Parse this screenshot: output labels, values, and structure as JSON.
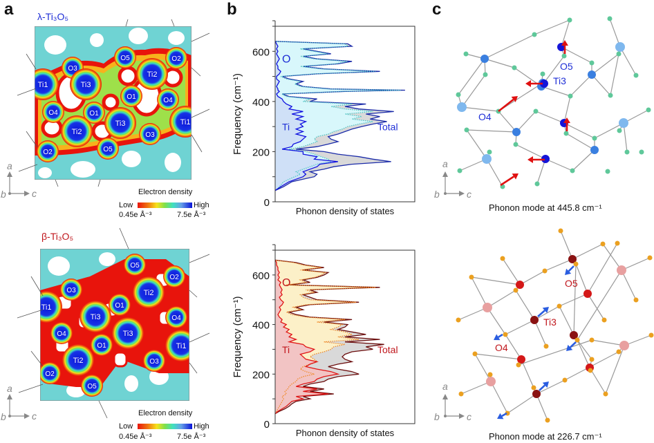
{
  "panels": {
    "a": {
      "letter": "a",
      "top": {
        "title": "λ-Ti₃O₅",
        "title_color": "#1f2fd6",
        "atom_labels": [
          "O3",
          "O5",
          "O2",
          "Ti1",
          "Ti3",
          "Ti2",
          "O1",
          "O4",
          "O4",
          "O1",
          "Ti3",
          "Ti1",
          "Ti2",
          "O3",
          "O2",
          "O5"
        ]
      },
      "bottom": {
        "title": "β-Ti₃O₅",
        "title_color": "#c0161c",
        "atom_labels": [
          "O5",
          "O2",
          "O3",
          "Ti2",
          "Ti1",
          "O1",
          "Ti3",
          "O4",
          "O4",
          "Ti3",
          "O1",
          "Ti1",
          "Ti2",
          "O3",
          "O2",
          "O5"
        ]
      },
      "axes": {
        "a": "a",
        "b": "b",
        "c": "c"
      },
      "colorbar": {
        "title": "Electron density",
        "low": "Low",
        "high": "High",
        "min_label": "0.45e Å⁻³",
        "max_label": "7.5e Å⁻³",
        "colors": [
          "#e8140c",
          "#f07d10",
          "#f7e21c",
          "#7fe04a",
          "#3fe0c0",
          "#66e3e8",
          "#1733e6",
          "#0a14d8"
        ]
      }
    },
    "b": {
      "letter": "b"
    },
    "c": {
      "letter": "c",
      "top": {
        "caption": "Phonon mode at 445.8 cm⁻¹",
        "labels": [
          "O5",
          "Ti3",
          "O4"
        ],
        "label_color": "#1f2fd6",
        "arrow_color": "#e01010"
      },
      "bottom": {
        "caption": "Phonon mode at 226.7 cm⁻¹",
        "labels": [
          "O5",
          "Ti3",
          "O4"
        ],
        "label_color": "#c0161c",
        "arrow_color": "#2a5de0"
      },
      "axes": {
        "a": "a",
        "b": "b",
        "c": "c"
      }
    }
  },
  "chart_data": [
    {
      "type": "area",
      "title": "λ-Ti3O5 phonon DOS",
      "xlabel": "Phonon density of states",
      "ylabel": "Frequency (cm⁻¹)",
      "ylim": [
        0,
        700
      ],
      "yticks": [
        0,
        200,
        400,
        600
      ],
      "ytick_labels": [
        "0",
        "200",
        "400",
        "600"
      ],
      "xlim": [
        0,
        1
      ],
      "orientation": "horizontal",
      "annotations": [
        "O",
        "Ti",
        "Total"
      ],
      "annotation_color": "#1f2fd6",
      "y": [
        45,
        60,
        80,
        90,
        100,
        110,
        120,
        130,
        140,
        150,
        160,
        170,
        180,
        190,
        200,
        210,
        220,
        230,
        240,
        250,
        260,
        270,
        280,
        290,
        300,
        310,
        320,
        330,
        340,
        350,
        360,
        370,
        380,
        390,
        400,
        410,
        420,
        430,
        440,
        445,
        450,
        460,
        470,
        480,
        490,
        500,
        510,
        520,
        530,
        540,
        550,
        560,
        570,
        580,
        590,
        600,
        610,
        620,
        630,
        640
      ],
      "series": [
        {
          "name": "Total",
          "color": "#1a2aa8",
          "fill": "#d9d9d9",
          "values": [
            0.0,
            0.06,
            0.12,
            0.2,
            0.28,
            0.3,
            0.25,
            0.35,
            0.42,
            0.55,
            0.83,
            0.7,
            0.6,
            0.45,
            0.35,
            0.15,
            0.3,
            0.38,
            0.45,
            0.4,
            0.38,
            0.45,
            0.5,
            0.55,
            0.62,
            0.7,
            0.8,
            0.68,
            0.75,
            0.65,
            0.85,
            0.6,
            0.5,
            0.65,
            0.25,
            0.3,
            0.1,
            0.05,
            0.5,
            0.93,
            0.4,
            0.2,
            0.15,
            0.2,
            0.1,
            0.05,
            0.3,
            0.75,
            0.35,
            0.2,
            0.45,
            0.55,
            0.3,
            0.2,
            0.4,
            0.3,
            0.2,
            0.55,
            0.52,
            0.0
          ]
        },
        {
          "name": "O",
          "color": "#4fc7c7",
          "fill": "#d8f7fb",
          "dotted": true,
          "values": [
            0.0,
            0.03,
            0.06,
            0.1,
            0.14,
            0.18,
            0.15,
            0.2,
            0.25,
            0.3,
            0.4,
            0.38,
            0.33,
            0.28,
            0.22,
            0.1,
            0.2,
            0.25,
            0.3,
            0.28,
            0.3,
            0.38,
            0.42,
            0.48,
            0.52,
            0.6,
            0.7,
            0.55,
            0.62,
            0.5,
            0.7,
            0.5,
            0.4,
            0.55,
            0.2,
            0.25,
            0.08,
            0.05,
            0.48,
            0.9,
            0.38,
            0.18,
            0.14,
            0.18,
            0.08,
            0.04,
            0.28,
            0.72,
            0.33,
            0.18,
            0.43,
            0.52,
            0.28,
            0.18,
            0.38,
            0.28,
            0.18,
            0.52,
            0.5,
            0.0
          ]
        },
        {
          "name": "Ti",
          "color": "#1010e0",
          "fill": "#cfe0f7",
          "values": [
            0.0,
            0.04,
            0.1,
            0.15,
            0.2,
            0.22,
            0.2,
            0.25,
            0.3,
            0.32,
            0.45,
            0.28,
            0.3,
            0.2,
            0.2,
            0.05,
            0.12,
            0.13,
            0.18,
            0.2,
            0.22,
            0.15,
            0.2,
            0.15,
            0.2,
            0.18,
            0.22,
            0.15,
            0.2,
            0.12,
            0.2,
            0.1,
            0.12,
            0.08,
            0.06,
            0.05,
            0.02,
            0.01,
            0.03,
            0.02,
            0.02,
            0.01,
            0.02,
            0.03,
            0.01,
            0.01,
            0.03,
            0.04,
            0.02,
            0.02,
            0.01,
            0.02,
            0.03,
            0.02,
            0.01,
            0.02,
            0.01,
            0.02,
            0.01,
            0.0
          ]
        }
      ]
    },
    {
      "type": "area",
      "title": "β-Ti3O5 phonon DOS",
      "xlabel": "Phonon density of states",
      "ylabel": "Frequency (cm⁻¹)",
      "ylim": [
        0,
        700
      ],
      "yticks": [
        0,
        200,
        400,
        600
      ],
      "ytick_labels": [
        "0",
        "200",
        "400",
        "600"
      ],
      "xlim": [
        0,
        1
      ],
      "orientation": "horizontal",
      "annotations": [
        "O",
        "Ti",
        "Total"
      ],
      "annotation_color": "#c0161c",
      "y": [
        40,
        50,
        60,
        70,
        80,
        90,
        100,
        110,
        120,
        130,
        140,
        150,
        160,
        170,
        180,
        190,
        200,
        210,
        220,
        230,
        240,
        250,
        260,
        270,
        280,
        290,
        300,
        310,
        320,
        330,
        340,
        350,
        360,
        370,
        380,
        390,
        400,
        410,
        420,
        430,
        440,
        450,
        460,
        470,
        480,
        490,
        500,
        510,
        520,
        530,
        540,
        550,
        560,
        570,
        580,
        590,
        600,
        610,
        620,
        630,
        640,
        650,
        660
      ],
      "series": [
        {
          "name": "Total",
          "color": "#6b0d0d",
          "fill": "#d9d9d9",
          "values": [
            0.0,
            0.03,
            0.07,
            0.1,
            0.12,
            0.15,
            0.25,
            0.2,
            0.42,
            0.25,
            0.35,
            0.2,
            0.25,
            0.35,
            0.38,
            0.45,
            0.6,
            0.55,
            0.45,
            0.38,
            0.45,
            0.55,
            0.5,
            0.48,
            0.5,
            0.55,
            0.7,
            0.65,
            0.78,
            0.5,
            0.75,
            0.5,
            0.65,
            0.55,
            0.45,
            0.5,
            0.52,
            0.35,
            0.55,
            0.25,
            0.15,
            0.1,
            0.2,
            0.15,
            0.25,
            0.6,
            0.3,
            0.25,
            0.2,
            0.3,
            0.25,
            0.75,
            0.1,
            0.25,
            0.2,
            0.3,
            0.35,
            0.38,
            0.2,
            0.35,
            0.22,
            0.15,
            0.0
          ]
        },
        {
          "name": "O",
          "color": "#f08a28",
          "fill": "#fcf0c8",
          "dotted": true,
          "values": [
            0.0,
            0.01,
            0.02,
            0.03,
            0.04,
            0.05,
            0.06,
            0.05,
            0.08,
            0.07,
            0.09,
            0.1,
            0.12,
            0.15,
            0.16,
            0.2,
            0.28,
            0.22,
            0.18,
            0.2,
            0.25,
            0.3,
            0.28,
            0.25,
            0.28,
            0.35,
            0.4,
            0.42,
            0.5,
            0.35,
            0.6,
            0.45,
            0.55,
            0.5,
            0.4,
            0.45,
            0.48,
            0.3,
            0.5,
            0.22,
            0.12,
            0.08,
            0.18,
            0.13,
            0.22,
            0.58,
            0.25,
            0.2,
            0.18,
            0.28,
            0.22,
            0.72,
            0.08,
            0.22,
            0.18,
            0.28,
            0.33,
            0.36,
            0.18,
            0.33,
            0.2,
            0.13,
            0.0
          ]
        },
        {
          "name": "Ti",
          "color": "#e01515",
          "fill": "#f2c4c4",
          "values": [
            0.0,
            0.02,
            0.05,
            0.08,
            0.1,
            0.12,
            0.2,
            0.15,
            0.38,
            0.2,
            0.3,
            0.15,
            0.2,
            0.28,
            0.3,
            0.35,
            0.45,
            0.4,
            0.3,
            0.22,
            0.25,
            0.3,
            0.22,
            0.2,
            0.18,
            0.25,
            0.28,
            0.22,
            0.2,
            0.1,
            0.15,
            0.1,
            0.12,
            0.08,
            0.1,
            0.06,
            0.08,
            0.04,
            0.05,
            0.03,
            0.02,
            0.03,
            0.04,
            0.03,
            0.05,
            0.06,
            0.04,
            0.03,
            0.05,
            0.04,
            0.05,
            0.04,
            0.03,
            0.04,
            0.02,
            0.03,
            0.02,
            0.03,
            0.02,
            0.02,
            0.01,
            0.01,
            0.0
          ]
        }
      ]
    }
  ]
}
